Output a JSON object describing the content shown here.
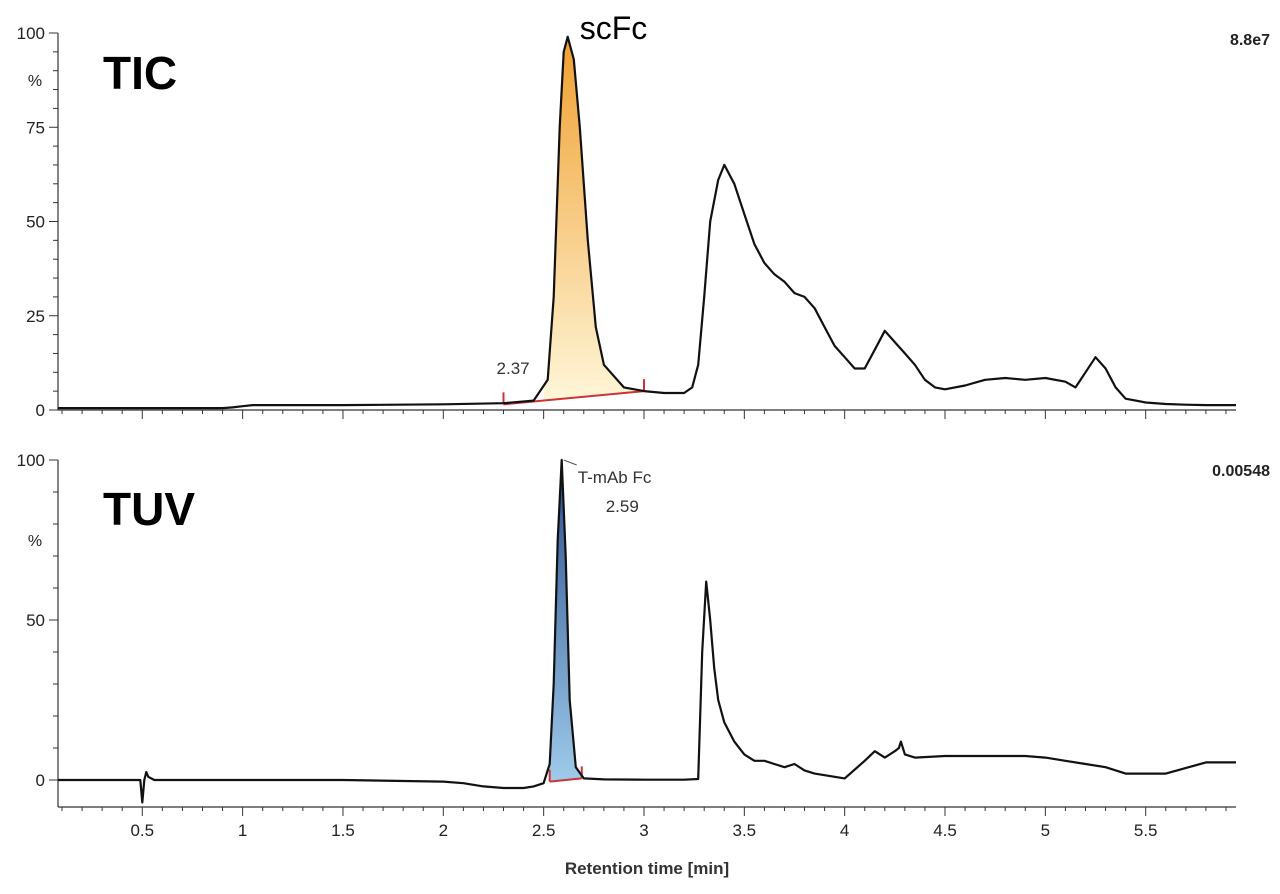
{
  "chart_data": [
    {
      "type": "line",
      "title": "TIC",
      "scale_label": "8.8e7",
      "y_unit_label": "%",
      "xlim": [
        0.08,
        5.95
      ],
      "ylim": [
        0,
        100
      ],
      "yticks": [
        0,
        25,
        50,
        75,
        100
      ],
      "colors": {
        "line": "#111111",
        "fill_top": "#f0a030",
        "fill_bottom": "#fff6d8",
        "baseline": "#cc3333"
      },
      "annotations": [
        {
          "text": "scFc",
          "x": 2.62,
          "y": 100
        },
        {
          "text": "2.37",
          "x": 2.37,
          "y": 5
        }
      ],
      "shaded_peak": {
        "x_start": 2.5,
        "x_end": 3.0,
        "baseline": [
          [
            2.3,
            1.5
          ],
          [
            3.0,
            5.0
          ]
        ]
      },
      "series": [
        {
          "x": [
            0.08,
            0.5,
            0.9,
            0.95,
            1.0,
            1.05,
            1.1,
            1.5,
            2.0,
            2.3,
            2.45,
            2.52,
            2.55,
            2.58,
            2.6,
            2.62,
            2.65,
            2.68,
            2.72,
            2.76,
            2.8,
            2.9,
            3.0,
            3.1,
            3.2,
            3.24,
            3.27,
            3.3,
            3.33,
            3.37,
            3.4,
            3.45,
            3.5,
            3.55,
            3.6,
            3.65,
            3.7,
            3.75,
            3.8,
            3.85,
            3.9,
            3.95,
            4.0,
            4.05,
            4.1,
            4.15,
            4.2,
            4.25,
            4.3,
            4.35,
            4.4,
            4.45,
            4.5,
            4.6,
            4.7,
            4.8,
            4.9,
            5.0,
            5.1,
            5.15,
            5.2,
            5.25,
            5.3,
            5.35,
            5.4,
            5.5,
            5.6,
            5.7,
            5.8,
            5.95
          ],
          "y": [
            0.5,
            0.5,
            0.5,
            0.7,
            1.0,
            1.3,
            1.3,
            1.3,
            1.5,
            1.8,
            2.5,
            8,
            30,
            75,
            95,
            99,
            93,
            75,
            45,
            22,
            12,
            6,
            5,
            4.5,
            4.5,
            6,
            12,
            30,
            50,
            61,
            65,
            60,
            52,
            44,
            39,
            36,
            34,
            31,
            30,
            27,
            22,
            17,
            14,
            11,
            11,
            16,
            21,
            18,
            15,
            12,
            8,
            6,
            5.5,
            6.5,
            8,
            8.5,
            8,
            8.5,
            7.5,
            6,
            10,
            14,
            11,
            6,
            3,
            2,
            1.6,
            1.4,
            1.3,
            1.3
          ]
        }
      ]
    },
    {
      "type": "line",
      "title": "TUV",
      "scale_label": "0.00548",
      "y_unit_label": "%",
      "xlabel": "Retention time [min]",
      "xlim": [
        0.08,
        5.95
      ],
      "ylim": [
        -5,
        100
      ],
      "yticks": [
        0,
        50,
        100
      ],
      "xticks": [
        0.5,
        1,
        1.5,
        2,
        2.5,
        3,
        3.5,
        4,
        4.5,
        5,
        5.5
      ],
      "xtick_labels": [
        "0.5",
        "1",
        "1.5",
        "2",
        "2.5",
        "3",
        "3.5",
        "4",
        "4.5",
        "5",
        "5.5"
      ],
      "colors": {
        "line": "#111111",
        "fill_top": "#2b4f8e",
        "fill_bottom": "#9fcbea",
        "baseline": "#cc3333"
      },
      "annotations": [
        {
          "text": "T-mAb Fc",
          "x": 2.6,
          "y": 100
        },
        {
          "text": "2.59",
          "x": 2.59,
          "y": 90
        }
      ],
      "shaded_peak": {
        "x_start": 2.53,
        "x_end": 2.69,
        "baseline": [
          [
            2.53,
            -0.5
          ],
          [
            2.69,
            0.5
          ]
        ]
      },
      "series": [
        {
          "x": [
            0.08,
            0.45,
            0.49,
            0.5,
            0.51,
            0.52,
            0.53,
            0.56,
            0.6,
            1.0,
            1.5,
            2.0,
            2.1,
            2.2,
            2.3,
            2.4,
            2.45,
            2.5,
            2.53,
            2.55,
            2.57,
            2.59,
            2.61,
            2.63,
            2.66,
            2.7,
            2.8,
            3.0,
            3.2,
            3.27,
            3.29,
            3.31,
            3.33,
            3.35,
            3.37,
            3.4,
            3.45,
            3.5,
            3.55,
            3.6,
            3.65,
            3.7,
            3.75,
            3.8,
            3.85,
            3.9,
            4.0,
            4.1,
            4.15,
            4.2,
            4.25,
            4.27,
            4.28,
            4.3,
            4.35,
            4.5,
            4.7,
            4.9,
            5.0,
            5.1,
            5.2,
            5.3,
            5.4,
            5.6,
            5.8,
            5.95
          ],
          "y": [
            0,
            0,
            0,
            -7,
            0,
            2.5,
            1,
            0,
            0,
            0,
            0,
            -0.5,
            -1,
            -2,
            -2.5,
            -2.5,
            -2,
            -1,
            5,
            30,
            75,
            100,
            70,
            25,
            4,
            0.5,
            0.2,
            0.1,
            0.1,
            0.3,
            40,
            62,
            50,
            35,
            25,
            18,
            12,
            8,
            6,
            6,
            5,
            4,
            5,
            3,
            2,
            1.5,
            0.5,
            6,
            9,
            7,
            9,
            10,
            12,
            8,
            7,
            7.5,
            7.5,
            7.5,
            7,
            6,
            5,
            4,
            2,
            2,
            5.5,
            5.5
          ]
        }
      ]
    }
  ]
}
